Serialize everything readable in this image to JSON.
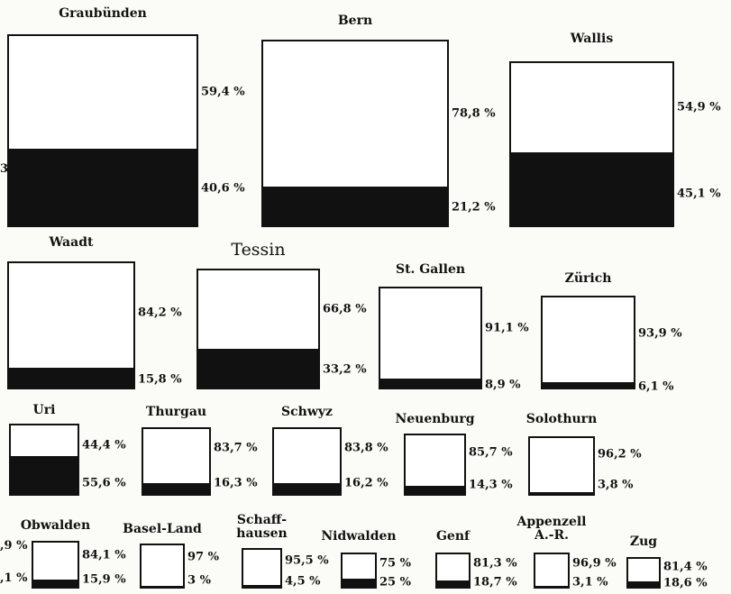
{
  "chart_data": {
    "type": "proportion-boxes",
    "categories": [
      "Graubünden",
      "Bern",
      "Wallis",
      "Waadt",
      "Tessin",
      "St. Gallen",
      "Zürich",
      "Uri",
      "Thurgau",
      "Schwyz",
      "Neuenburg",
      "Solothurn",
      "Obwalden",
      "Basel-Land",
      "Schaff-\nhausen",
      "Nidwalden",
      "Genf",
      "Appenzell\nA.-R.",
      "Zug"
    ],
    "series": [
      {
        "color": "#ffffff",
        "values": [
          59.4,
          78.8,
          54.9,
          84.2,
          66.8,
          91.1,
          93.9,
          44.4,
          83.7,
          83.8,
          85.7,
          96.2,
          84.1,
          97,
          95.5,
          75,
          81.3,
          96.9,
          81.4
        ],
        "value_labels": [
          "59,4 %",
          "78,8 %",
          "54,9 %",
          "84,2 %",
          "66,8 %",
          "91,1 %",
          "93,9 %",
          "44,4 %",
          "83,7 %",
          "83,8 %",
          "85,7 %",
          "96,2 %",
          "84,1 %",
          "97 %",
          "95,5 %",
          "75 %",
          "81,3 %",
          "96,9 %",
          "81,4 %"
        ]
      },
      {
        "color": "#111111",
        "values": [
          40.6,
          21.2,
          45.1,
          15.8,
          33.2,
          8.9,
          6.1,
          55.6,
          16.3,
          16.2,
          14.3,
          3.8,
          15.9,
          3,
          4.5,
          25,
          18.7,
          3.1,
          18.6
        ],
        "value_labels": [
          "40,6 %",
          "21,2 %",
          "45,1 %",
          "15,8 %",
          "33,2 %",
          "8,9 %",
          "6,1 %",
          "55,6 %",
          "16,3 %",
          "16,2 %",
          "14,3 %",
          "3,8 %",
          "15,9 %",
          "3 %",
          "4,5 %",
          "25 %",
          "18,7 %",
          "3,1 %",
          "18,6 %"
        ]
      }
    ],
    "fragments": [
      "3",
      ",9 %",
      ",1 %"
    ]
  }
}
